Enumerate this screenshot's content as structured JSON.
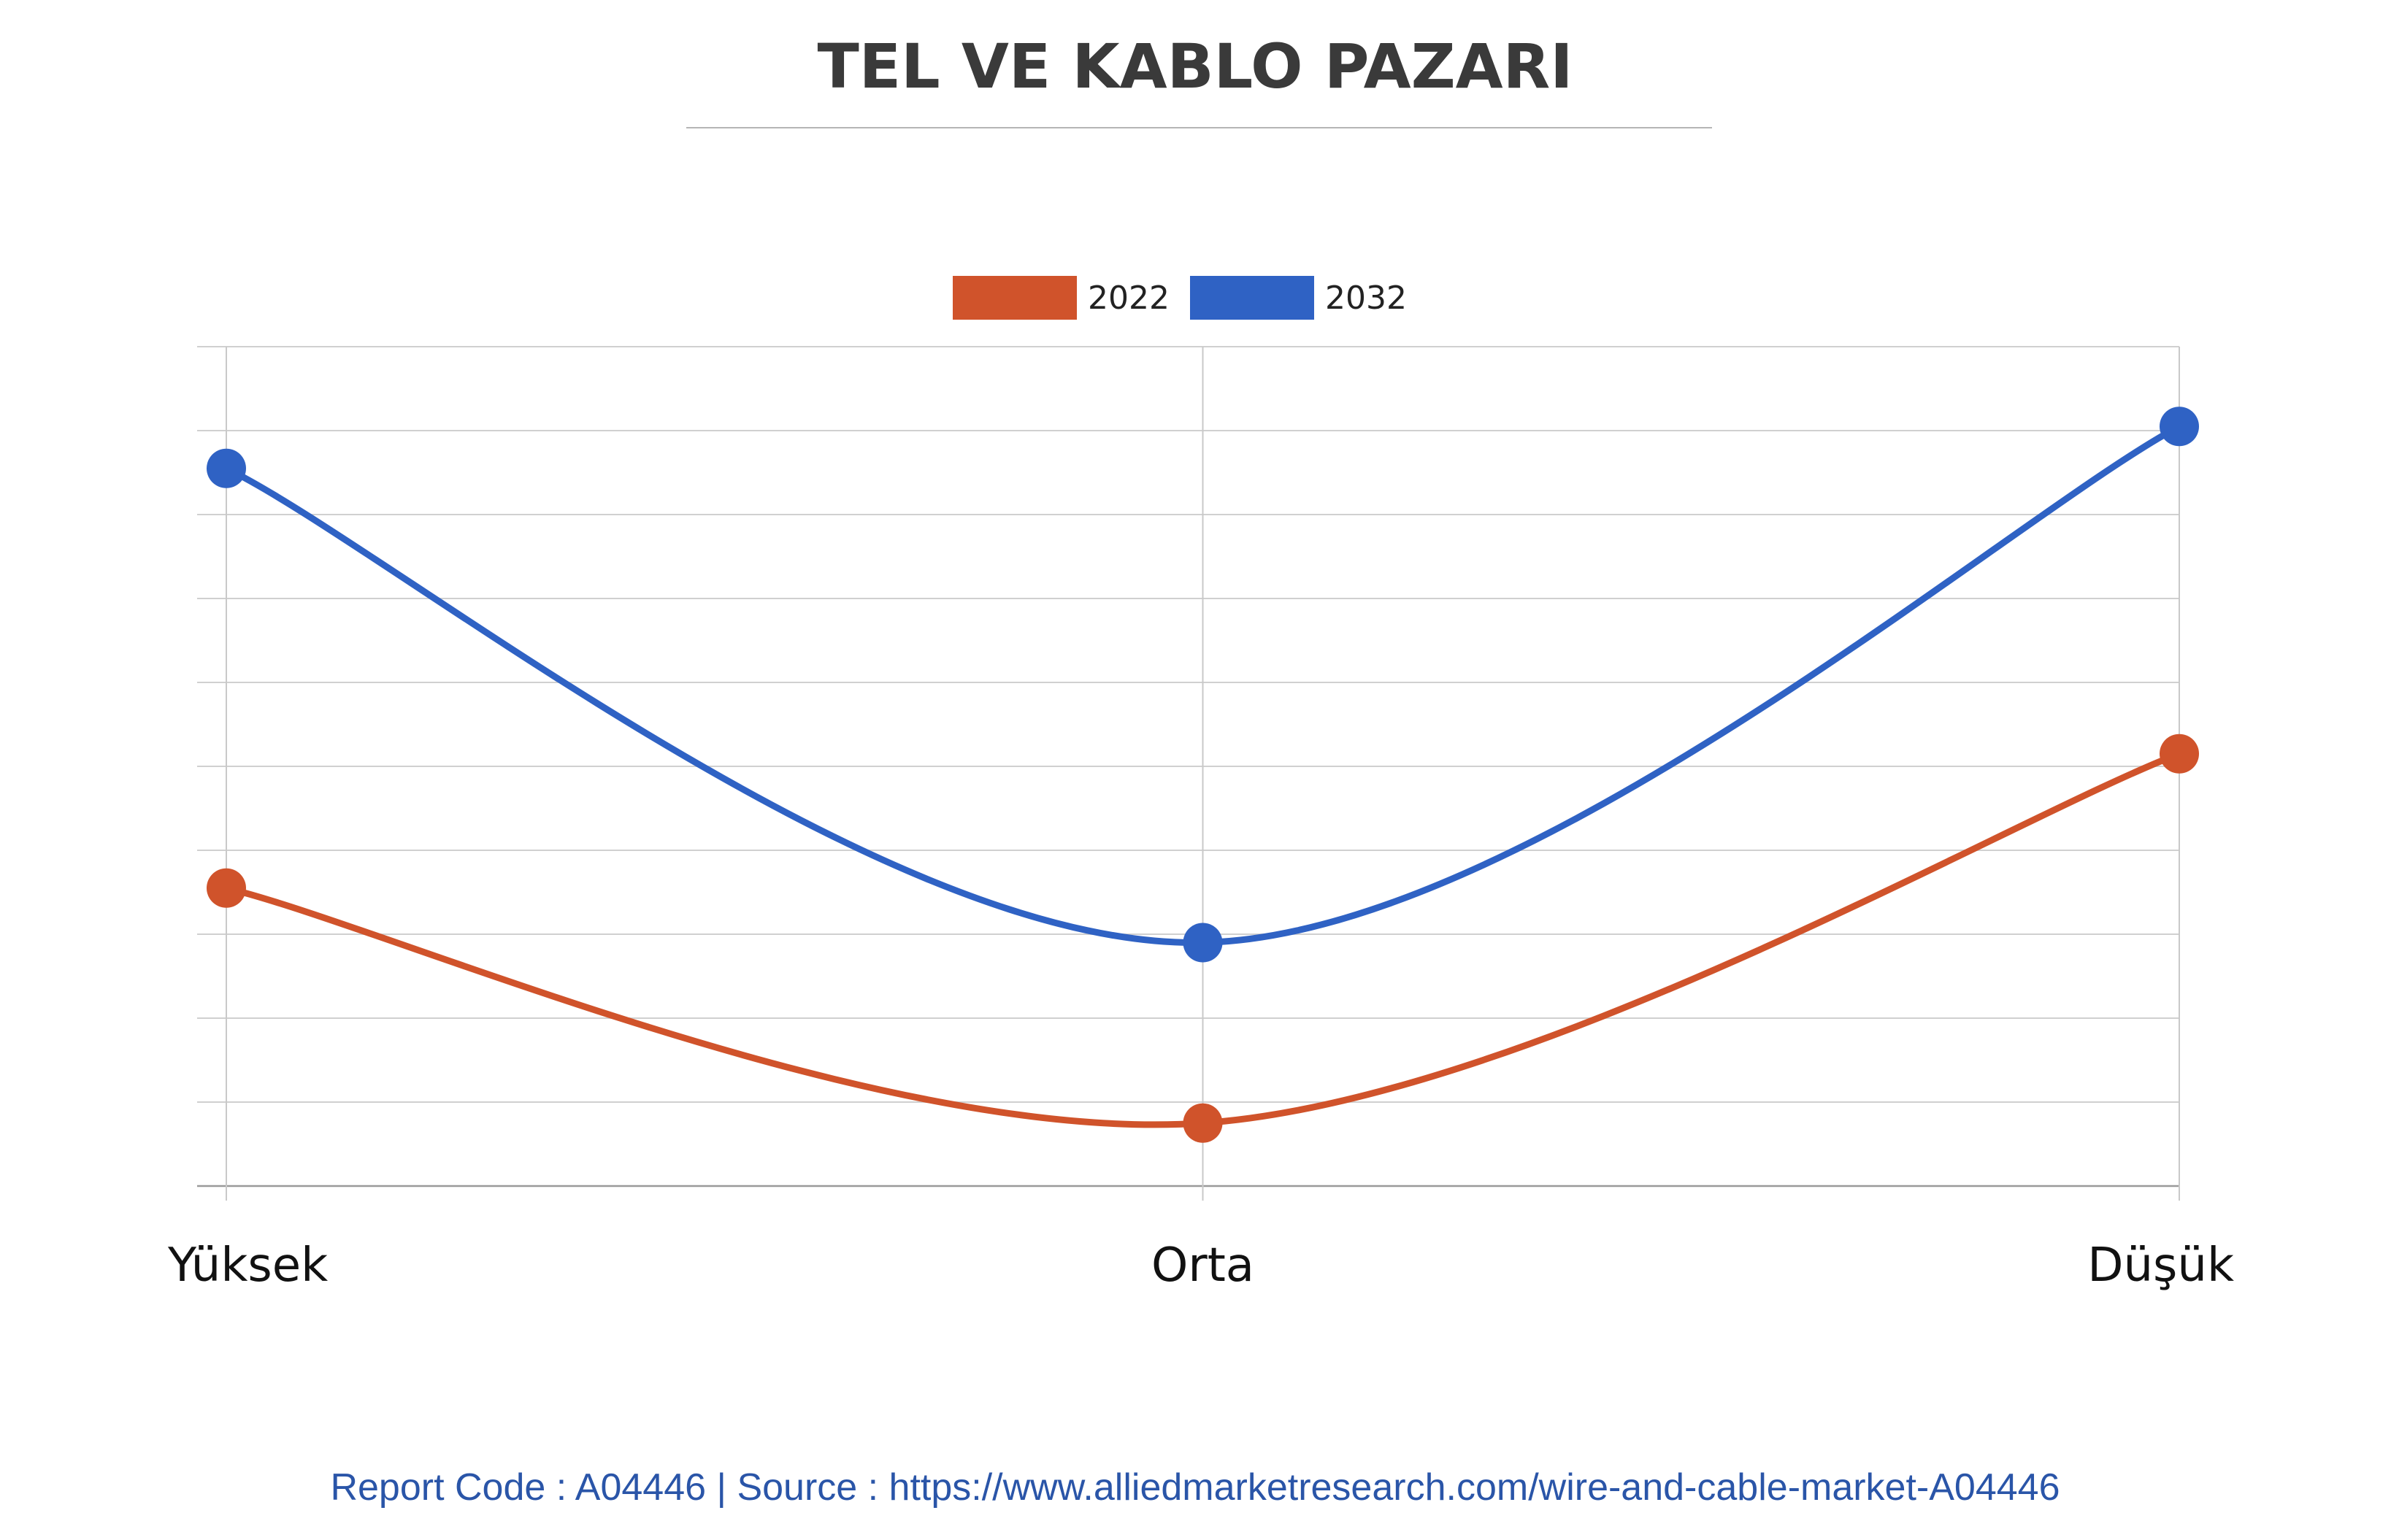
{
  "chart_data": {
    "type": "line",
    "title": "TEL VE KABLO PAZARI",
    "categories": [
      "Yüksek",
      "Orta",
      "Düşük"
    ],
    "series": [
      {
        "name": "2022",
        "color": "#d0532b",
        "values": [
          3.55,
          0.75,
          5.15
        ]
      },
      {
        "name": "2032",
        "color": "#2f62c4",
        "values": [
          8.55,
          2.9,
          9.05
        ]
      }
    ],
    "ylim": [
      0,
      10
    ],
    "y_gridlines": 10,
    "grid": true,
    "legend": "top-center",
    "xlabel": "",
    "ylabel": ""
  },
  "footer": {
    "text": "Report Code : A04446  |  Source : https://www.alliedmarketresearch.com/wire-and-cable-market-A04446",
    "color": "#2a55a8"
  }
}
